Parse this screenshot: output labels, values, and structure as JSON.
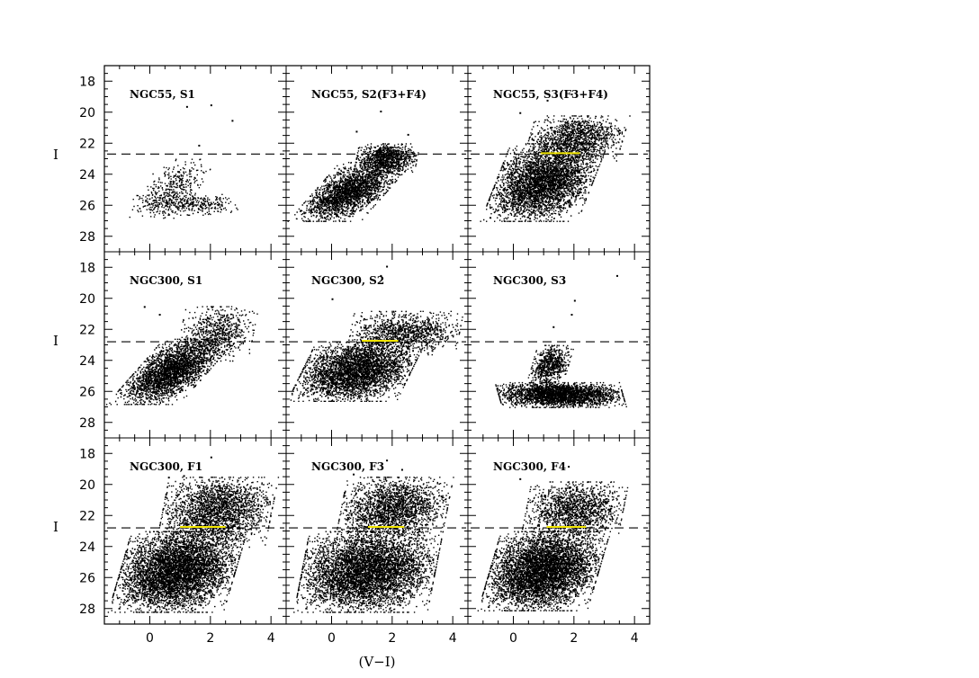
{
  "chart_data": {
    "type": "scatter",
    "layout": "3x3 grid of color-magnitude diagrams with shared axes",
    "xlabel": "(V−I)",
    "ylabel": "I",
    "xlim": [
      -1.5,
      4.5
    ],
    "ylim": [
      29,
      17
    ],
    "y_inverted": true,
    "xticks": [
      0,
      2,
      4
    ],
    "yticks": [
      18,
      20,
      22,
      24,
      26,
      28
    ],
    "grid": false,
    "legend": "none",
    "point_color": "#000000",
    "reference_line": {
      "style": "dashed",
      "color": "#000000",
      "y": 22.7
    },
    "highlight_color": "#f2e600",
    "panels": [
      {
        "label": "NGC55, S1",
        "line_y": 22.7,
        "density": 0.12,
        "highlight": null,
        "regions": [
          {
            "weight": 0.5,
            "x": [
              -0.2,
              1.6
            ],
            "y": [
              23.0,
              26.8
            ],
            "slope": 0.6
          },
          {
            "weight": 0.5,
            "x": [
              -0.5,
              3.0
            ],
            "y": [
              25.2,
              26.6
            ],
            "slope": -0.4
          }
        ],
        "outliers": [
          [
            1.2,
            19.6
          ],
          [
            2.0,
            19.5
          ],
          [
            2.7,
            20.5
          ],
          [
            1.6,
            22.1
          ]
        ]
      },
      {
        "label": "NGC55, S2(F3+F4)",
        "line_y": 22.7,
        "density": 0.55,
        "highlight": null,
        "regions": [
          {
            "weight": 0.7,
            "x": [
              -0.6,
              1.8
            ],
            "y": [
              23.2,
              27.0
            ],
            "slope": 0.9
          },
          {
            "weight": 0.3,
            "x": [
              0.8,
              2.8
            ],
            "y": [
              22.0,
              24.0
            ],
            "slope": 0.2
          }
        ],
        "outliers": [
          [
            1.6,
            19.9
          ],
          [
            2.5,
            21.4
          ],
          [
            0.8,
            21.2
          ]
        ]
      },
      {
        "label": "NGC55, S3(F3+F4)",
        "line_y": 22.7,
        "density": 0.85,
        "highlight": [
          0.9,
          2.2
        ],
        "regions": [
          {
            "weight": 0.75,
            "x": [
              -0.6,
              2.6
            ],
            "y": [
              22.0,
              27.0
            ],
            "slope": 0.4
          },
          {
            "weight": 0.25,
            "x": [
              0.5,
              3.6
            ],
            "y": [
              20.2,
              23.2
            ],
            "slope": 0.3
          }
        ],
        "outliers": [
          [
            0.2,
            20.0
          ],
          [
            1.9,
            18.8
          ],
          [
            2.9,
            20.9
          ],
          [
            1.1,
            19.2
          ]
        ]
      },
      {
        "label": "NGC300, S1",
        "line_y": 22.8,
        "density": 0.6,
        "highlight": null,
        "regions": [
          {
            "weight": 0.8,
            "x": [
              -0.5,
              1.9
            ],
            "y": [
              22.6,
              26.8
            ],
            "slope": 0.9
          },
          {
            "weight": 0.2,
            "x": [
              1.0,
              3.4
            ],
            "y": [
              20.5,
              24.0
            ],
            "slope": 0.2
          }
        ],
        "outliers": [
          [
            -0.2,
            20.5
          ],
          [
            0.3,
            21.0
          ],
          [
            3.0,
            22.0
          ]
        ]
      },
      {
        "label": "NGC300, S2",
        "line_y": 22.8,
        "density": 0.8,
        "highlight": [
          1.0,
          2.2
        ],
        "regions": [
          {
            "weight": 0.75,
            "x": [
              -1.0,
              2.6
            ],
            "y": [
              22.8,
              26.6
            ],
            "slope": 0.5
          },
          {
            "weight": 0.25,
            "x": [
              0.6,
              4.2
            ],
            "y": [
              20.8,
              23.6
            ],
            "slope": 0.2
          }
        ],
        "outliers": [
          [
            1.8,
            17.9
          ],
          [
            1.6,
            18.5
          ],
          [
            0.0,
            20.0
          ]
        ]
      },
      {
        "label": "NGC300, S3",
        "line_y": 22.8,
        "density": 0.55,
        "highlight": null,
        "regions": [
          {
            "weight": 0.8,
            "x": [
              -0.5,
              3.6
            ],
            "y": [
              25.4,
              27.0
            ],
            "slope": -0.3
          },
          {
            "weight": 0.2,
            "x": [
              0.6,
              1.8
            ],
            "y": [
              23.0,
              25.6
            ],
            "slope": 0.3
          }
        ],
        "outliers": [
          [
            3.4,
            18.5
          ],
          [
            2.0,
            20.1
          ],
          [
            1.9,
            21.0
          ],
          [
            1.3,
            21.8
          ]
        ]
      },
      {
        "label": "NGC300, F1",
        "line_y": 22.8,
        "density": 1.6,
        "highlight": [
          1.0,
          2.5
        ],
        "regions": [
          {
            "weight": 0.75,
            "x": [
              -1.0,
              2.8
            ],
            "y": [
              23.0,
              28.2
            ],
            "slope": 0.3
          },
          {
            "weight": 0.25,
            "x": [
              0.4,
              4.0
            ],
            "y": [
              19.5,
              24.0
            ],
            "slope": 0.2
          }
        ],
        "outliers": [
          [
            2.0,
            18.2
          ],
          [
            1.1,
            19.4
          ],
          [
            0.6,
            19.5
          ]
        ]
      },
      {
        "label": "NGC300, F3",
        "line_y": 22.8,
        "density": 1.6,
        "highlight": [
          1.2,
          2.4
        ],
        "regions": [
          {
            "weight": 0.78,
            "x": [
              -1.0,
              3.4
            ],
            "y": [
              23.0,
              28.2
            ],
            "slope": 0.2
          },
          {
            "weight": 0.22,
            "x": [
              0.3,
              3.8
            ],
            "y": [
              19.5,
              23.6
            ],
            "slope": 0.2
          }
        ],
        "outliers": [
          [
            1.8,
            18.4
          ],
          [
            2.3,
            19.0
          ],
          [
            0.7,
            19.3
          ]
        ]
      },
      {
        "label": "NGC300, F4",
        "line_y": 22.8,
        "density": 1.2,
        "highlight": [
          1.1,
          2.4
        ],
        "regions": [
          {
            "weight": 0.78,
            "x": [
              -0.8,
              2.8
            ],
            "y": [
              23.0,
              28.1
            ],
            "slope": 0.3
          },
          {
            "weight": 0.22,
            "x": [
              0.4,
              3.6
            ],
            "y": [
              19.8,
              23.6
            ],
            "slope": 0.2
          }
        ],
        "outliers": [
          [
            0.2,
            19.6
          ],
          [
            1.8,
            18.8
          ],
          [
            2.7,
            21.2
          ]
        ]
      }
    ]
  }
}
